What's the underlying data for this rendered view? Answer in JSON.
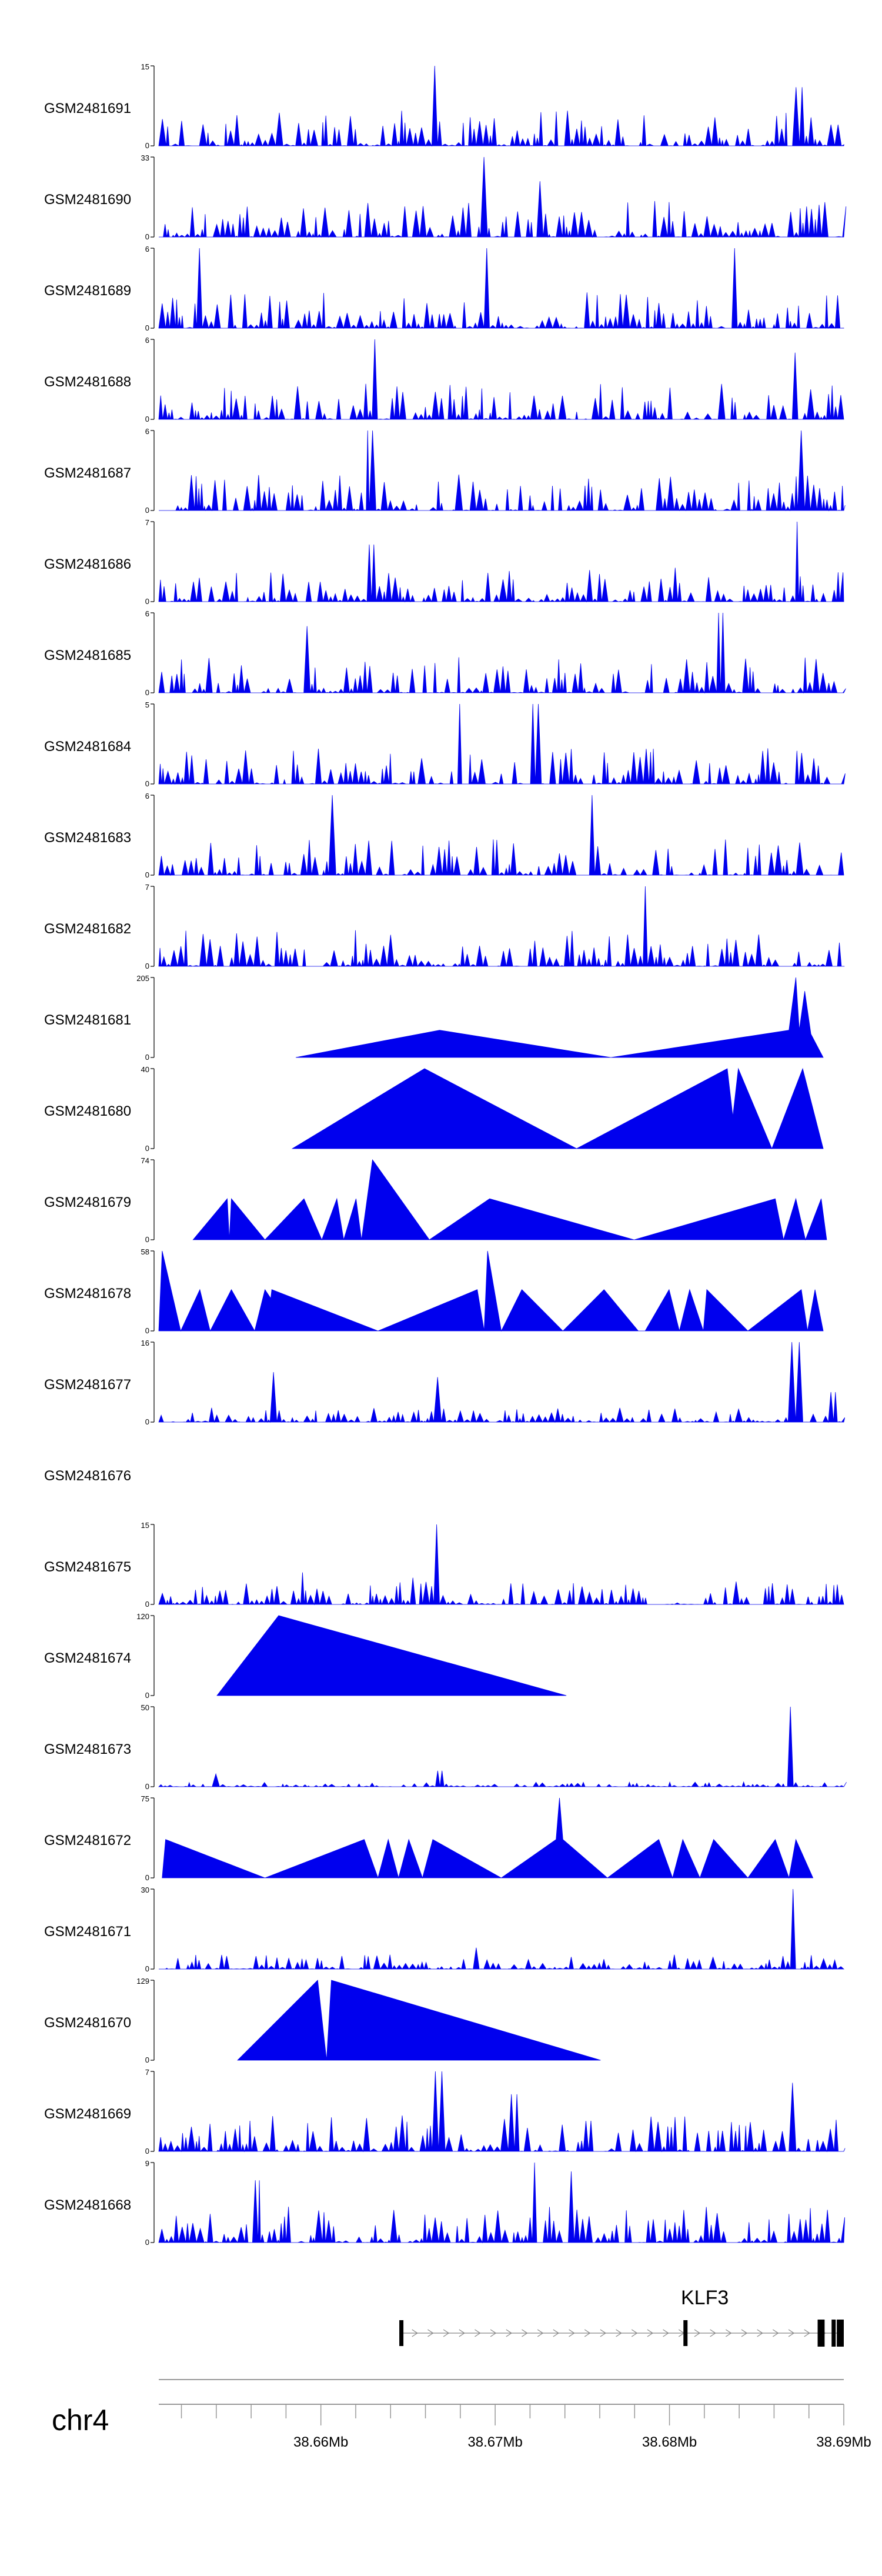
{
  "chart_data": {
    "type": "area",
    "title": "",
    "chromosome": "chr4",
    "gene": "KLF3",
    "xlabel": "",
    "xlim": [
      38.6507,
      38.69
    ],
    "x_ticks": [
      {
        "value": 38.66,
        "label": "38.66Mb"
      },
      {
        "value": 38.67,
        "label": "38.67Mb"
      },
      {
        "value": 38.68,
        "label": "38.68Mb"
      },
      {
        "value": 38.69,
        "label": "38.69Mb"
      }
    ],
    "minor_tick_step": 0.002,
    "colors": {
      "fill": "#0000ee",
      "axis": "#000000",
      "strand": "#888888",
      "axis_line": "#999999"
    },
    "tracks": [
      {
        "name": "GSM2481691",
        "ymax": 15,
        "mode": "dense",
        "seed": 11,
        "spikes": [
          [
            0.406,
            15
          ],
          [
            0.935,
            11
          ]
        ]
      },
      {
        "name": "GSM2481690",
        "ymax": 33,
        "mode": "dense",
        "seed": 12,
        "spikes": [
          [
            0.478,
            33
          ],
          [
            0.56,
            23
          ]
        ]
      },
      {
        "name": "GSM2481689",
        "ymax": 6,
        "mode": "dense",
        "seed": 13,
        "spikes": [
          [
            0.058,
            6
          ],
          [
            0.48,
            6
          ],
          [
            0.84,
            6
          ]
        ]
      },
      {
        "name": "GSM2481688",
        "ymax": 6,
        "mode": "dense",
        "seed": 14,
        "spikes": [
          [
            0.314,
            6
          ],
          [
            0.93,
            5
          ]
        ]
      },
      {
        "name": "GSM2481687",
        "ymax": 6,
        "mode": "dense",
        "seed": 15,
        "spikes": [
          [
            0.307,
            6
          ],
          [
            0.935,
            6
          ]
        ]
      },
      {
        "name": "GSM2481686",
        "ymax": 7,
        "mode": "dense",
        "seed": 16,
        "spikes": [
          [
            0.933,
            7
          ],
          [
            0.31,
            5
          ]
        ]
      },
      {
        "name": "GSM2481685",
        "ymax": 6,
        "mode": "dense",
        "seed": 17,
        "spikes": [
          [
            0.82,
            6
          ],
          [
            0.22,
            5
          ]
        ]
      },
      {
        "name": "GSM2481684",
        "ymax": 5,
        "mode": "dense",
        "seed": 18,
        "spikes": [
          [
            0.44,
            5
          ],
          [
            0.55,
            5
          ]
        ]
      },
      {
        "name": "GSM2481683",
        "ymax": 6,
        "mode": "dense",
        "seed": 19,
        "spikes": [
          [
            0.256,
            6
          ],
          [
            0.63,
            6
          ]
        ]
      },
      {
        "name": "GSM2481682",
        "ymax": 7,
        "mode": "dense",
        "seed": 20,
        "spikes": [
          [
            0.708,
            7
          ]
        ]
      },
      {
        "name": "GSM2481681",
        "ymax": 205,
        "mode": "tri",
        "points": [
          [
            0.2,
            0
          ],
          [
            0.41,
            70
          ],
          [
            0.66,
            0
          ],
          [
            0.92,
            70
          ],
          [
            0.93,
            205
          ],
          [
            0.935,
            70
          ],
          [
            0.943,
            170
          ],
          [
            0.952,
            60
          ],
          [
            0.97,
            0
          ]
        ]
      },
      {
        "name": "GSM2481680",
        "ymax": 40,
        "mode": "tri",
        "points": [
          [
            0.195,
            0
          ],
          [
            0.388,
            40
          ],
          [
            0.61,
            0
          ],
          [
            0.83,
            40
          ],
          [
            0.838,
            16
          ],
          [
            0.846,
            40
          ],
          [
            0.895,
            0
          ],
          [
            0.94,
            40
          ],
          [
            0.97,
            0
          ]
        ]
      },
      {
        "name": "GSM2481679",
        "ymax": 74,
        "mode": "tri",
        "points": [
          [
            0.05,
            0
          ],
          [
            0.1,
            38
          ],
          [
            0.103,
            0
          ],
          [
            0.106,
            38
          ],
          [
            0.155,
            0
          ],
          [
            0.212,
            38
          ],
          [
            0.238,
            0
          ],
          [
            0.26,
            38
          ],
          [
            0.27,
            0
          ],
          [
            0.288,
            38
          ],
          [
            0.296,
            0
          ],
          [
            0.312,
            74
          ],
          [
            0.395,
            0
          ],
          [
            0.483,
            38
          ],
          [
            0.694,
            0
          ],
          [
            0.9,
            38
          ],
          [
            0.912,
            0
          ],
          [
            0.93,
            38
          ],
          [
            0.944,
            0
          ],
          [
            0.967,
            38
          ],
          [
            0.975,
            0
          ]
        ]
      },
      {
        "name": "GSM2481678",
        "ymax": 58,
        "mode": "tri",
        "points": [
          [
            0.0,
            0
          ],
          [
            0.005,
            58
          ],
          [
            0.032,
            0
          ],
          [
            0.06,
            30
          ],
          [
            0.075,
            0
          ],
          [
            0.106,
            30
          ],
          [
            0.14,
            0
          ],
          [
            0.17,
            0
          ],
          [
            0.14,
            0
          ],
          [
            0.155,
            30
          ],
          [
            0.195,
            0
          ],
          [
            0.158,
            0
          ],
          [
            0.165,
            30
          ],
          [
            0.32,
            0
          ],
          [
            0.465,
            30
          ],
          [
            0.475,
            0
          ],
          [
            0.48,
            58
          ],
          [
            0.5,
            0
          ],
          [
            0.53,
            30
          ],
          [
            0.59,
            0
          ],
          [
            0.65,
            30
          ],
          [
            0.7,
            0
          ],
          [
            0.71,
            0
          ],
          [
            0.745,
            30
          ],
          [
            0.76,
            0
          ],
          [
            0.775,
            30
          ],
          [
            0.795,
            0
          ],
          [
            0.8,
            30
          ],
          [
            0.86,
            0
          ],
          [
            0.938,
            30
          ],
          [
            0.947,
            0
          ],
          [
            0.958,
            30
          ],
          [
            0.97,
            0
          ]
        ]
      },
      {
        "name": "GSM2481677",
        "ymax": 16,
        "mode": "dense",
        "seed": 21,
        "amp": 0.18,
        "spikes": [
          [
            0.168,
            10
          ],
          [
            0.41,
            9
          ],
          [
            0.93,
            16
          ],
          [
            0.985,
            6
          ]
        ]
      },
      {
        "name": "GSM2481676",
        "ymax": null,
        "mode": "empty"
      },
      {
        "name": "GSM2481675",
        "ymax": 15,
        "mode": "dense",
        "seed": 22,
        "amp": 0.3,
        "spikes": [
          [
            0.408,
            15
          ],
          [
            0.21,
            6
          ],
          [
            0.37,
            5
          ]
        ]
      },
      {
        "name": "GSM2481674",
        "ymax": 120,
        "mode": "tri",
        "points": [
          [
            0.085,
            0
          ],
          [
            0.175,
            120
          ],
          [
            0.595,
            0
          ]
        ]
      },
      {
        "name": "GSM2481673",
        "ymax": 50,
        "mode": "dense",
        "seed": 23,
        "amp": 0.06,
        "spikes": [
          [
            0.925,
            50
          ],
          [
            0.41,
            10
          ],
          [
            0.08,
            8
          ]
        ]
      },
      {
        "name": "GSM2481672",
        "ymax": 75,
        "mode": "tri",
        "points": [
          [
            0.005,
            0
          ],
          [
            0.01,
            36
          ],
          [
            0.155,
            0
          ],
          [
            0.3,
            36
          ],
          [
            0.32,
            0
          ],
          [
            0.335,
            36
          ],
          [
            0.35,
            0
          ],
          [
            0.365,
            36
          ],
          [
            0.385,
            0
          ],
          [
            0.4,
            36
          ],
          [
            0.5,
            0
          ],
          [
            0.58,
            36
          ],
          [
            0.585,
            75
          ],
          [
            0.59,
            36
          ],
          [
            0.655,
            0
          ],
          [
            0.73,
            36
          ],
          [
            0.75,
            0
          ],
          [
            0.765,
            36
          ],
          [
            0.79,
            0
          ],
          [
            0.81,
            36
          ],
          [
            0.86,
            0
          ],
          [
            0.9,
            36
          ],
          [
            0.92,
            0
          ],
          [
            0.93,
            36
          ],
          [
            0.955,
            0
          ]
        ]
      },
      {
        "name": "GSM2481671",
        "ymax": 30,
        "mode": "dense",
        "seed": 24,
        "amp": 0.18,
        "spikes": [
          [
            0.925,
            30
          ],
          [
            0.462,
            8
          ]
        ]
      },
      {
        "name": "GSM2481670",
        "ymax": 129,
        "mode": "tri",
        "points": [
          [
            0.115,
            0
          ],
          [
            0.232,
            129
          ],
          [
            0.245,
            0
          ],
          [
            0.252,
            129
          ],
          [
            0.645,
            0
          ]
        ]
      },
      {
        "name": "GSM2481669",
        "ymax": 7,
        "mode": "dense",
        "seed": 25,
        "spikes": [
          [
            0.408,
            7
          ],
          [
            0.928,
            6
          ],
          [
            0.52,
            5
          ]
        ]
      },
      {
        "name": "GSM2481668",
        "ymax": 9,
        "mode": "dense",
        "seed": 26,
        "spikes": [
          [
            0.55,
            9
          ],
          [
            0.6,
            8
          ],
          [
            0.145,
            7
          ]
        ]
      }
    ],
    "gene_model": {
      "start": 38.6645,
      "end": 38.69,
      "exons": [
        {
          "start": 38.6645,
          "end": 38.6646,
          "coding": false
        },
        {
          "start": 38.6808,
          "end": 38.681,
          "coding": false
        },
        {
          "start": 38.6885,
          "end": 38.6889,
          "coding": true
        },
        {
          "start": 38.6893,
          "end": 38.6894,
          "coding": true
        },
        {
          "start": 38.6896,
          "end": 38.69,
          "coding": true
        }
      ],
      "strand_marker_step": 0.0009
    }
  }
}
